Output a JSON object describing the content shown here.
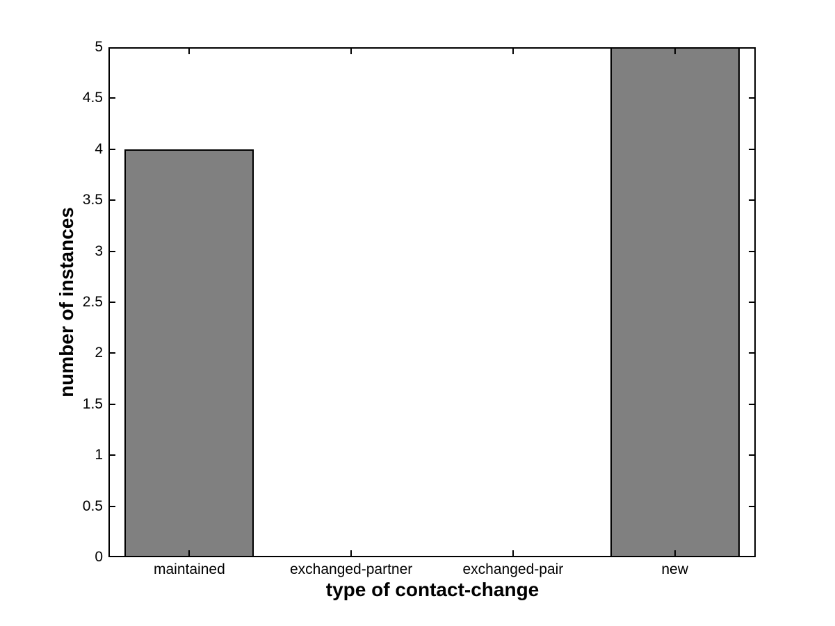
{
  "chart_data": {
    "type": "bar",
    "categories": [
      "maintained",
      "exchanged-partner",
      "exchanged-pair",
      "new"
    ],
    "values": [
      4,
      0,
      0,
      5
    ],
    "title": "",
    "xlabel": "type of contact-change",
    "ylabel": "number of instances",
    "xlim": [
      0.5,
      4.5
    ],
    "ylim": [
      0,
      5
    ],
    "yticks": [
      0,
      0.5,
      1,
      1.5,
      2,
      2.5,
      3,
      3.5,
      4,
      4.5,
      5
    ],
    "ytick_labels": [
      "0",
      "0.5",
      "1",
      "1.5",
      "2",
      "2.5",
      "3",
      "3.5",
      "4",
      "4.5",
      "5"
    ],
    "bar_width_fraction": 0.8,
    "grid": false,
    "legend_position": "none",
    "colors": {
      "bar_fill": "#808080",
      "bar_edge": "#000000",
      "axis": "#000000",
      "background": "#ffffff",
      "text": "#000000"
    }
  }
}
